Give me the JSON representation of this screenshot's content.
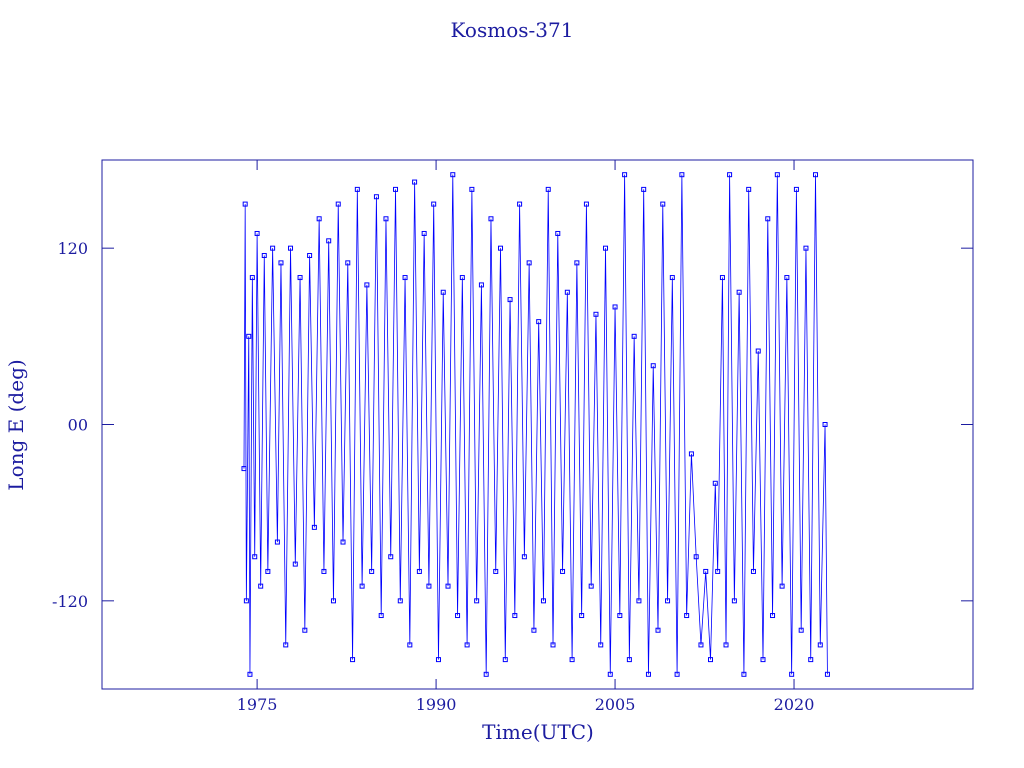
{
  "chart_data": {
    "type": "line",
    "title": "Kosmos-371",
    "x_label": "Time(UTC)",
    "y_label": "Long E (deg)",
    "xlim": [
      1962,
      2035
    ],
    "xticks": [
      1975,
      1990,
      2005,
      2020
    ],
    "ylim": [
      -180,
      180
    ],
    "yticks": [
      -120,
      {
        "value": 0,
        "label": "00"
      },
      120
    ],
    "x": [
      1973.9,
      1974.0,
      1974.1,
      1974.3,
      1974.4,
      1974.6,
      1974.8,
      1975.0,
      1975.3,
      1975.6,
      1975.9,
      1976.3,
      1976.7,
      1977.0,
      1977.4,
      1977.8,
      1978.2,
      1978.6,
      1979.0,
      1979.4,
      1979.8,
      1980.2,
      1980.6,
      1981.0,
      1981.4,
      1981.8,
      1982.2,
      1982.6,
      1983.0,
      1983.4,
      1983.8,
      1984.2,
      1984.6,
      1985.0,
      1985.4,
      1985.8,
      1986.2,
      1986.6,
      1987.0,
      1987.4,
      1987.8,
      1988.2,
      1988.6,
      1989.0,
      1989.4,
      1989.8,
      1990.2,
      1990.6,
      1991.0,
      1991.4,
      1991.8,
      1992.2,
      1992.6,
      1993.0,
      1993.4,
      1993.8,
      1994.2,
      1994.6,
      1995.0,
      1995.4,
      1995.8,
      1996.2,
      1996.6,
      1997.0,
      1997.4,
      1997.8,
      1998.2,
      1998.6,
      1999.0,
      1999.4,
      1999.8,
      2000.2,
      2000.6,
      2001.0,
      2001.4,
      2001.8,
      2002.2,
      2002.6,
      2003.0,
      2003.4,
      2003.8,
      2004.2,
      2004.6,
      2005.0,
      2005.4,
      2005.8,
      2006.2,
      2006.6,
      2007.0,
      2007.4,
      2007.8,
      2008.2,
      2008.6,
      2009.0,
      2009.4,
      2009.8,
      2010.2,
      2010.6,
      2011.0,
      2011.4,
      2011.8,
      2012.2,
      2012.6,
      2013.0,
      2013.4,
      2013.6,
      2014.0,
      2014.3,
      2014.6,
      2015.0,
      2015.4,
      2015.8,
      2016.2,
      2016.6,
      2017.0,
      2017.4,
      2017.8,
      2018.2,
      2018.6,
      2019.0,
      2019.4,
      2019.8,
      2020.2,
      2020.6,
      2021.0,
      2021.4,
      2021.8,
      2022.2,
      2022.6,
      2022.8
    ],
    "series": [
      {
        "color": "#0000ff",
        "values": [
          -30,
          150,
          -120,
          60,
          -170,
          100,
          -90,
          130,
          -110,
          115,
          -100,
          120,
          -80,
          110,
          -150,
          120,
          -95,
          100,
          -140,
          115,
          -70,
          140,
          -100,
          125,
          -120,
          150,
          -80,
          110,
          -160,
          160,
          -110,
          95,
          -100,
          155,
          -130,
          140,
          -90,
          160,
          -120,
          100,
          -150,
          165,
          -100,
          130,
          -110,
          150,
          -160,
          90,
          -110,
          170,
          -130,
          100,
          -150,
          160,
          -120,
          95,
          -170,
          140,
          -100,
          120,
          -160,
          85,
          -130,
          150,
          -90,
          110,
          -140,
          70,
          -120,
          160,
          -150,
          130,
          -100,
          90,
          -160,
          110,
          -130,
          150,
          -110,
          75,
          -150,
          120,
          -170,
          80,
          -130,
          170,
          -160,
          60,
          -120,
          160,
          -170,
          40,
          -140,
          150,
          -120,
          100,
          -170,
          170,
          -130,
          -20,
          -90,
          -150,
          -100,
          -160,
          -40,
          -100,
          100,
          -150,
          170,
          -120,
          90,
          -170,
          160,
          -100,
          50,
          -160,
          140,
          -130,
          170,
          -110,
          100,
          -170,
          160,
          -140,
          120,
          -160,
          170,
          -150,
          0,
          -170
        ]
      }
    ]
  }
}
